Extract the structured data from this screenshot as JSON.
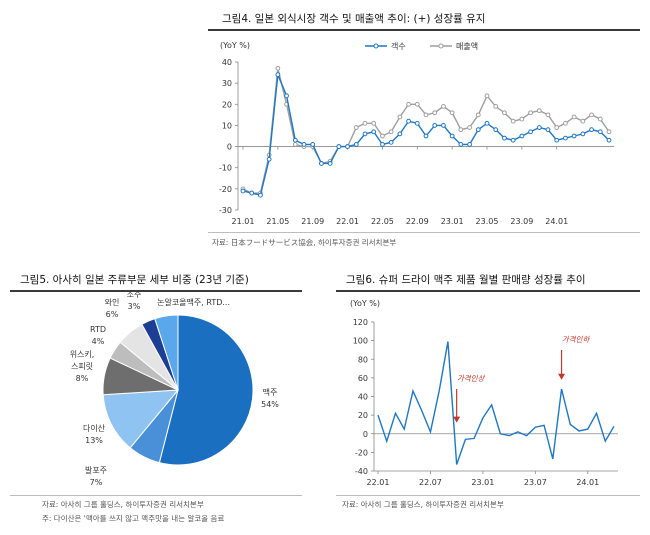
{
  "figure4": {
    "title": "그림4. 일본 외식시장 객수 및 매출액 추이: (+) 성장률 유지",
    "source": "자료: 日本フードサービス協会, 하이투자증권 리서치본부",
    "chart_data": {
      "type": "line",
      "title": "그림4. 일본 외식시장 객수 및 매출액 추이: (+) 성장률 유지",
      "ylabel": "(YoY %)",
      "ylim": [
        -30,
        40
      ],
      "yticks": [
        -30,
        -20,
        -10,
        0,
        10,
        20,
        30,
        40
      ],
      "x_tick_labels": [
        "21.01",
        "21.05",
        "21.09",
        "22.01",
        "22.05",
        "22.09",
        "23.01",
        "23.05",
        "23.09",
        "24.01"
      ],
      "x_start": "2021-01",
      "x_end": "2024-05",
      "legend_position": "top-right",
      "series": [
        {
          "name": "객수",
          "color": "#1f77c4",
          "values": [
            -21,
            -22,
            -23,
            -6,
            34,
            24,
            3,
            1,
            1,
            -8,
            -8,
            0,
            0,
            1,
            6,
            7,
            1,
            2,
            6,
            12,
            11,
            5,
            10,
            10,
            5,
            1,
            1,
            8,
            11,
            8,
            4,
            3,
            5,
            7,
            9,
            8,
            3,
            4,
            5,
            6,
            8,
            7,
            3
          ]
        },
        {
          "name": "매출액",
          "color": "#9e9e9e",
          "values": [
            -20,
            -22,
            -22,
            -4,
            37,
            20,
            1,
            0,
            0,
            -8,
            -7,
            0,
            0,
            9,
            11,
            11,
            5,
            7,
            14,
            20,
            20,
            15,
            16,
            19,
            16,
            8,
            9,
            15,
            24,
            19,
            16,
            12,
            13,
            16,
            17,
            15,
            9,
            11,
            14,
            12,
            15,
            13,
            7
          ]
        }
      ]
    }
  },
  "figure5": {
    "title": "그림5.  아사히 일본 주류부문 세부 비중 (23년 기준)",
    "source": "자료: 아사히 그룹 홀딩스, 하이투자증권 리서치본부",
    "note": "주: 다이산은 '맥아를 쓰지 않고 맥주맛을 내는 알코올 음료",
    "chart_data": {
      "type": "pie",
      "slices": [
        {
          "label": "맥주",
          "value": 54,
          "value_label": "54%",
          "color": "#1a6fc1"
        },
        {
          "label": "발포주",
          "value": 7,
          "value_label": "7%",
          "color": "#4a90d9"
        },
        {
          "label": "다이산",
          "value": 13,
          "value_label": "13%",
          "color": "#8fc3f2"
        },
        {
          "label": "위스키,\n스피릿",
          "value": 8,
          "value_label": "8%",
          "color": "#6e6e6e"
        },
        {
          "label": "RTD",
          "value": 4,
          "value_label": "4%",
          "color": "#bdbdbd"
        },
        {
          "label": "와인",
          "value": 6,
          "value_label": "6%",
          "color": "#e4e4e4"
        },
        {
          "label": "소주",
          "value": 3,
          "value_label": "3%",
          "color": "#1c3f94"
        },
        {
          "label": "논알코올맥주, RTD...",
          "value": 5,
          "value_label": "",
          "color": "#5aa7ec"
        }
      ]
    }
  },
  "figure6": {
    "title": "그림6.  슈퍼 드라이 맥주 제품 월별 판매량 성장률 추이",
    "source": "자료: 아사히 그룹 홀딩스, 하이투자증권 리서치본부",
    "annotations": [
      "가격인상",
      "가격인하"
    ],
    "chart_data": {
      "type": "line",
      "ylabel": "(YoY %)",
      "ylim": [
        -40,
        120
      ],
      "yticks": [
        -40,
        -20,
        0,
        20,
        40,
        60,
        80,
        100,
        120
      ],
      "x_tick_labels": [
        "22.01",
        "22.07",
        "23.01",
        "23.07",
        "24.01"
      ],
      "x_start": "2022-01",
      "x_end": "2024-04",
      "series": [
        {
          "name": "",
          "color": "#1f77c4",
          "values": [
            20,
            -8,
            22,
            5,
            46,
            25,
            2,
            46,
            99,
            -33,
            -6,
            -5,
            17,
            31,
            0,
            -2,
            2,
            -2,
            7,
            9,
            -27,
            48,
            10,
            3,
            5,
            22,
            -8,
            8
          ]
        }
      ],
      "annotations": [
        {
          "text": "가격인상",
          "x": "2022-10",
          "color": "#c0392b"
        },
        {
          "text": "가격인하",
          "x": "2023-10",
          "color": "#c0392b"
        }
      ]
    }
  }
}
